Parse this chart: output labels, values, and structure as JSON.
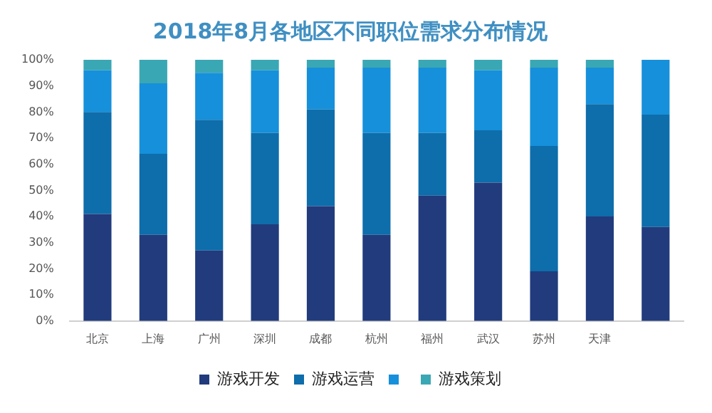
{
  "chart_data": {
    "type": "bar",
    "title": "2018年8月各地区不同职位需求分布情况",
    "stacked": true,
    "categories": [
      "北京",
      "上海",
      "广州",
      "深圳",
      "成都",
      "杭州",
      "福州",
      "武汉",
      "苏州",
      "天津",
      null
    ],
    "series": [
      {
        "name": "游戏开发",
        "color": "#213b7c",
        "values": [
          41,
          33,
          27,
          37,
          44,
          33,
          48,
          53,
          19,
          40,
          36
        ]
      },
      {
        "name": "游戏运营",
        "color": "#0e6dab",
        "values": [
          39,
          31,
          50,
          35,
          37,
          39,
          24,
          20,
          48,
          43,
          43
        ]
      },
      {
        "color": "#1690da",
        "values": [
          16,
          27,
          18,
          24,
          16,
          25,
          25,
          23,
          30,
          14,
          21
        ]
      },
      {
        "name": "游戏策划",
        "color": "#3aa7b4",
        "values": [
          4,
          9,
          5,
          4,
          3,
          3,
          3,
          4,
          3,
          3,
          0
        ]
      }
    ],
    "ylim": [
      0,
      100
    ],
    "yticks": [
      {
        "value": 0,
        "label": "0%"
      },
      {
        "value": 10,
        "label": "10%"
      },
      {
        "value": 20,
        "label": "20%"
      },
      {
        "value": 30,
        "label": "30%"
      },
      {
        "value": 40,
        "label": "40%"
      },
      {
        "value": 50,
        "label": "50%"
      },
      {
        "value": 60,
        "label": "60%"
      },
      {
        "value": 70,
        "label": "70%"
      },
      {
        "value": 80,
        "label": "80%"
      },
      {
        "value": 90,
        "label": "90%"
      },
      {
        "value": 100,
        "label": "100%"
      }
    ],
    "grid": false,
    "legend": "bottom"
  }
}
